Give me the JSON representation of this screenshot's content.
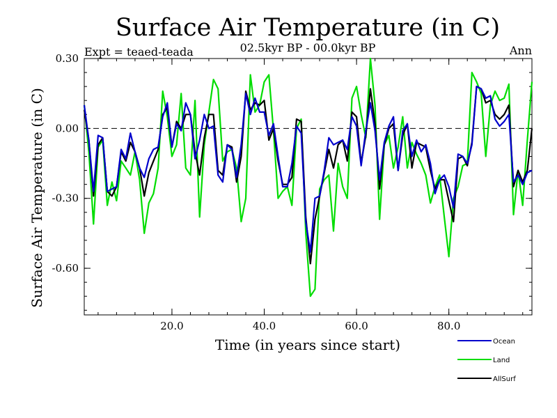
{
  "chart_data": {
    "type": "line",
    "title": "Surface Air Temperature (in C)",
    "subtitle": "02.5kyr BP - 00.0kyr BP",
    "experiment": "Expt = teaed-teada",
    "season": "Ann",
    "xlabel": "Time (in years since start)",
    "ylabel": "Surface Air Temperature (in C)",
    "xlim": [
      1,
      98
    ],
    "ylim": [
      -0.8,
      0.3
    ],
    "xticks": [
      20,
      40,
      60,
      80
    ],
    "xtick_labels": [
      "20.0",
      "40.0",
      "60.0",
      "80.0"
    ],
    "yticks": [
      0.3,
      0.0,
      -0.3,
      -0.6
    ],
    "ytick_labels": [
      "0.30",
      "0.00",
      "-0.30",
      "-0.60"
    ],
    "zero_line": "dashed",
    "grid": false,
    "legend_position": "bottom-right",
    "series": [
      {
        "name": "Ocean",
        "color": "#0000cc",
        "x": [
          1,
          2,
          3,
          4,
          5,
          6,
          7,
          8,
          9,
          10,
          11,
          12,
          13,
          14,
          15,
          16,
          17,
          18,
          19,
          20,
          21,
          22,
          23,
          24,
          25,
          26,
          27,
          28,
          29,
          30,
          31,
          32,
          33,
          34,
          35,
          36,
          37,
          38,
          39,
          40,
          41,
          42,
          43,
          44,
          45,
          46,
          47,
          48,
          49,
          50,
          51,
          52,
          53,
          54,
          55,
          56,
          57,
          58,
          59,
          60,
          61,
          62,
          63,
          64,
          65,
          66,
          67,
          68,
          69,
          70,
          71,
          72,
          73,
          74,
          75,
          76,
          77,
          78,
          79,
          80,
          81,
          82,
          83,
          84,
          85,
          86,
          87,
          88,
          89,
          90,
          91,
          92,
          93,
          94,
          95,
          96,
          97,
          98
        ],
        "values": [
          0.1,
          -0.05,
          -0.27,
          -0.03,
          -0.04,
          -0.27,
          -0.26,
          -0.25,
          -0.09,
          -0.13,
          -0.02,
          -0.1,
          -0.17,
          -0.21,
          -0.13,
          -0.09,
          -0.08,
          0.05,
          0.11,
          -0.08,
          0.02,
          -0.01,
          0.11,
          0.06,
          -0.13,
          -0.05,
          0.06,
          0.0,
          0.01,
          -0.2,
          -0.23,
          -0.07,
          -0.09,
          -0.21,
          -0.07,
          0.15,
          0.06,
          0.13,
          0.07,
          0.07,
          -0.03,
          0.02,
          -0.12,
          -0.25,
          -0.25,
          -0.15,
          0.01,
          -0.02,
          -0.4,
          -0.53,
          -0.3,
          -0.29,
          -0.18,
          -0.04,
          -0.07,
          -0.06,
          -0.05,
          -0.09,
          0.05,
          0.01,
          -0.16,
          -0.01,
          0.11,
          -0.01,
          -0.22,
          -0.06,
          0.01,
          0.05,
          -0.18,
          -0.01,
          0.02,
          -0.12,
          -0.05,
          -0.1,
          -0.07,
          -0.15,
          -0.28,
          -0.22,
          -0.2,
          -0.25,
          -0.34,
          -0.11,
          -0.12,
          -0.15,
          -0.07,
          0.18,
          0.17,
          0.13,
          0.14,
          0.04,
          0.01,
          0.03,
          0.06,
          -0.23,
          -0.2,
          -0.24,
          -0.19,
          -0.18
        ]
      },
      {
        "name": "Land",
        "color": "#00dd00",
        "x": [
          1,
          2,
          3,
          4,
          5,
          6,
          7,
          8,
          9,
          10,
          11,
          12,
          13,
          14,
          15,
          16,
          17,
          18,
          19,
          20,
          21,
          22,
          23,
          24,
          25,
          26,
          27,
          28,
          29,
          30,
          31,
          32,
          33,
          34,
          35,
          36,
          37,
          38,
          39,
          40,
          41,
          42,
          43,
          44,
          45,
          46,
          47,
          48,
          49,
          50,
          51,
          52,
          53,
          54,
          55,
          56,
          57,
          58,
          59,
          60,
          61,
          62,
          63,
          64,
          65,
          66,
          67,
          68,
          69,
          70,
          71,
          72,
          73,
          74,
          75,
          76,
          77,
          78,
          79,
          80,
          81,
          82,
          83,
          84,
          85,
          86,
          87,
          88,
          89,
          90,
          91,
          92,
          93,
          94,
          95,
          96,
          97,
          98
        ],
        "values": [
          0.1,
          -0.1,
          -0.41,
          -0.08,
          -0.05,
          -0.33,
          -0.23,
          -0.31,
          -0.14,
          -0.17,
          -0.2,
          -0.1,
          -0.22,
          -0.45,
          -0.32,
          -0.28,
          -0.17,
          0.16,
          0.05,
          -0.12,
          -0.07,
          0.15,
          -0.17,
          -0.2,
          0.12,
          -0.38,
          -0.07,
          0.07,
          0.21,
          0.17,
          -0.14,
          -0.1,
          -0.09,
          -0.17,
          -0.4,
          -0.3,
          0.23,
          0.07,
          0.1,
          0.2,
          0.23,
          -0.01,
          -0.3,
          -0.27,
          -0.25,
          -0.33,
          0.0,
          0.04,
          -0.45,
          -0.72,
          -0.69,
          -0.26,
          -0.22,
          -0.2,
          -0.44,
          -0.15,
          -0.25,
          -0.3,
          0.13,
          0.18,
          0.06,
          -0.04,
          0.3,
          0.1,
          -0.39,
          -0.07,
          -0.03,
          -0.17,
          -0.08,
          0.05,
          -0.17,
          -0.06,
          -0.11,
          -0.15,
          -0.2,
          -0.32,
          -0.25,
          -0.2,
          -0.38,
          -0.55,
          -0.3,
          -0.25,
          -0.16,
          -0.15,
          0.24,
          0.2,
          0.15,
          -0.12,
          0.1,
          0.16,
          0.12,
          0.13,
          0.19,
          -0.37,
          -0.18,
          -0.33,
          -0.05,
          0.2
        ]
      },
      {
        "name": "AllSurf",
        "color": "#000000",
        "x": [
          1,
          2,
          3,
          4,
          5,
          6,
          7,
          8,
          9,
          10,
          11,
          12,
          13,
          14,
          15,
          16,
          17,
          18,
          19,
          20,
          21,
          22,
          23,
          24,
          25,
          26,
          27,
          28,
          29,
          30,
          31,
          32,
          33,
          34,
          35,
          36,
          37,
          38,
          39,
          40,
          41,
          42,
          43,
          44,
          45,
          46,
          47,
          48,
          49,
          50,
          51,
          52,
          53,
          54,
          55,
          56,
          57,
          58,
          59,
          60,
          61,
          62,
          63,
          64,
          65,
          66,
          67,
          68,
          69,
          70,
          71,
          72,
          73,
          74,
          75,
          76,
          77,
          78,
          79,
          80,
          81,
          82,
          83,
          84,
          85,
          86,
          87,
          88,
          89,
          90,
          91,
          92,
          93,
          94,
          95,
          96,
          97,
          98
        ],
        "values": [
          0.08,
          -0.05,
          -0.29,
          -0.07,
          -0.04,
          -0.27,
          -0.29,
          -0.25,
          -0.1,
          -0.14,
          -0.06,
          -0.1,
          -0.17,
          -0.29,
          -0.19,
          -0.14,
          -0.09,
          0.06,
          0.09,
          -0.08,
          0.03,
          0.0,
          0.06,
          0.06,
          -0.1,
          -0.2,
          -0.04,
          0.06,
          0.06,
          -0.18,
          -0.2,
          -0.07,
          -0.08,
          -0.23,
          -0.12,
          0.16,
          0.08,
          0.11,
          0.1,
          0.12,
          -0.05,
          0.0,
          -0.14,
          -0.24,
          -0.24,
          -0.21,
          0.04,
          0.03,
          -0.38,
          -0.58,
          -0.39,
          -0.29,
          -0.19,
          -0.09,
          -0.17,
          -0.07,
          -0.05,
          -0.14,
          0.07,
          0.05,
          -0.15,
          -0.03,
          0.17,
          0.02,
          -0.26,
          -0.07,
          0.0,
          0.02,
          -0.18,
          -0.03,
          0.02,
          -0.17,
          -0.06,
          -0.07,
          -0.08,
          -0.18,
          -0.26,
          -0.22,
          -0.22,
          -0.31,
          -0.4,
          -0.13,
          -0.12,
          -0.16,
          -0.06,
          0.18,
          0.17,
          0.11,
          0.12,
          0.06,
          0.04,
          0.06,
          0.1,
          -0.25,
          -0.18,
          -0.23,
          -0.18,
          0.0
        ]
      }
    ]
  }
}
